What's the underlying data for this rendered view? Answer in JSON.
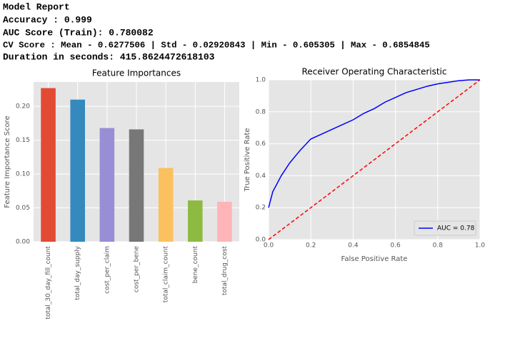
{
  "report": {
    "title": "Model Report",
    "lines": [
      "Accuracy : 0.999",
      "AUC Score (Train): 0.780082",
      "CV Score : Mean - 0.6277506 | Std - 0.02920843 | Min - 0.605305 | Max - 0.6854845",
      "Duration in seconds:  415.8624472618103"
    ]
  },
  "chart_data": [
    {
      "type": "bar",
      "title": "Feature Importances",
      "y_label": "Feature Importance Score",
      "categories": [
        "total_30_day_fill_count",
        "total_day_supply",
        "cost_per_claim",
        "cost_per_bene",
        "total_claim_count",
        "bene_count",
        "total_drug_cost"
      ],
      "values": [
        0.227,
        0.21,
        0.168,
        0.166,
        0.109,
        0.061,
        0.059
      ],
      "colors": [
        "#E24A33",
        "#348ABD",
        "#988ED5",
        "#777777",
        "#FBC15E",
        "#8EBA42",
        "#FFB5B8"
      ],
      "ylim": [
        0,
        0.236
      ],
      "yticks": [
        {
          "value": 0,
          "label": "0.00"
        },
        {
          "value": 0.05,
          "label": "0.05"
        },
        {
          "value": 0.1,
          "label": "0.10"
        },
        {
          "value": 0.15,
          "label": "0.15"
        },
        {
          "value": 0.2,
          "label": "0.20"
        }
      ],
      "grid": true
    },
    {
      "type": "line",
      "title": "Receiver Operating Characteristic",
      "x_label": "False Positive Rate",
      "y_label": "True Positive Rate",
      "series": [
        {
          "name": "AUC = 0.78",
          "color": "#0000ff",
          "x": [
            0,
            0.01,
            0.02,
            0.04,
            0.06,
            0.1,
            0.15,
            0.2,
            0.25,
            0.3,
            0.35,
            0.4,
            0.45,
            0.5,
            0.55,
            0.6,
            0.65,
            0.7,
            0.75,
            0.8,
            0.85,
            0.9,
            0.95,
            1
          ],
          "values": [
            0.2,
            0.25,
            0.3,
            0.35,
            0.4,
            0.48,
            0.56,
            0.63,
            0.66,
            0.69,
            0.72,
            0.75,
            0.79,
            0.82,
            0.86,
            0.89,
            0.92,
            0.94,
            0.96,
            0.975,
            0.985,
            0.995,
            1,
            1
          ]
        },
        {
          "color": "#ff0000",
          "dashed": true,
          "x": [
            0,
            1
          ],
          "values": [
            0,
            1
          ]
        }
      ],
      "xlim": [
        0,
        1
      ],
      "ylim": [
        0,
        1
      ],
      "xticks": [
        {
          "value": 0,
          "label": "0.0"
        },
        0.2,
        0.4,
        0.6,
        0.8,
        {
          "value": 1,
          "label": "1.0"
        }
      ],
      "yticks": [
        {
          "value": 0,
          "label": "0.0"
        },
        0.2,
        0.4,
        0.6,
        0.8,
        {
          "value": 1,
          "label": "1.0"
        }
      ],
      "grid": true,
      "legend": "lower right"
    }
  ]
}
